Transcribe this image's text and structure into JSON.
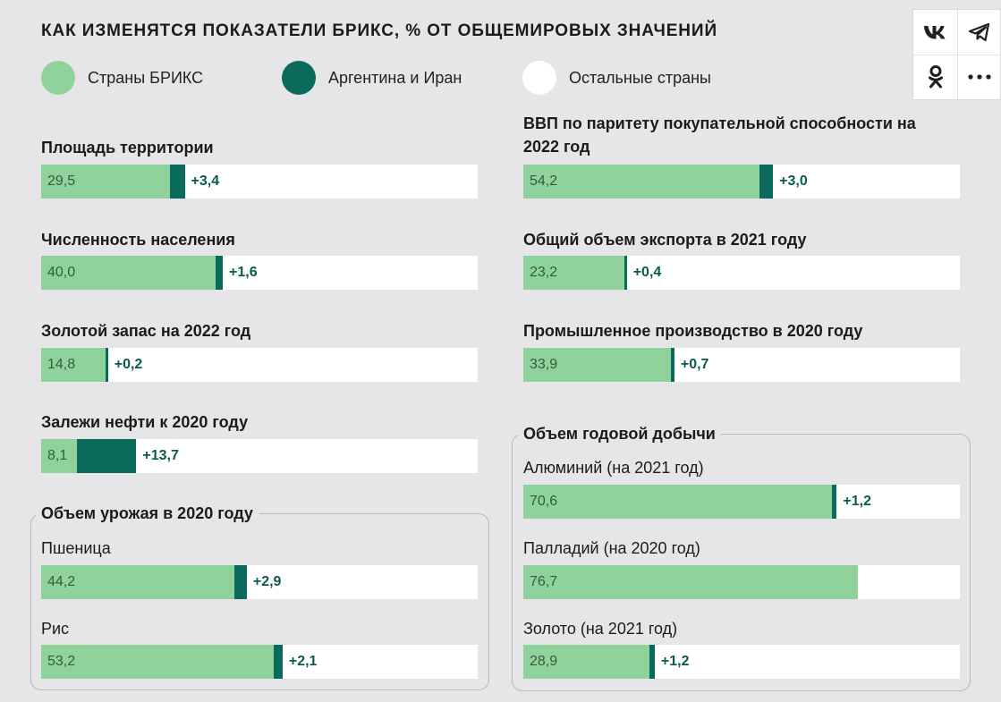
{
  "title": "КАК ИЗМЕНЯТСЯ ПОКАЗАТЕЛИ БРИКС, % ОТ ОБЩЕМИРОВЫХ ЗНАЧЕНИЙ",
  "legend": [
    {
      "label": "Страны БРИКС",
      "color": "#8fd29c"
    },
    {
      "label": "Аргентина и Иран",
      "color": "#0a6b5d"
    },
    {
      "label": "Остальные страны",
      "color": "#ffffff"
    }
  ],
  "share": {
    "icons": [
      "vk-icon",
      "telegram-icon",
      "odnoklassniki-icon",
      "more-icon"
    ]
  },
  "chart_data": {
    "type": "bar",
    "unit": "%",
    "xlim": [
      0,
      100
    ],
    "series": [
      {
        "name": "Страны БРИКС",
        "color": "#8fd29c"
      },
      {
        "name": "Аргентина и Иран",
        "color": "#0a6b5d"
      },
      {
        "name": "Остальные страны",
        "color": "#ffffff"
      }
    ],
    "groups": [
      {
        "title": "Объем урожая в 2020 году",
        "items": [
          "Пшеница",
          "Рис"
        ]
      },
      {
        "title": "Объем годовой добычи",
        "items": [
          "Алюминий (на 2021 год)",
          "Палладий (на 2020 год)",
          "Золото (на 2021 год)"
        ]
      }
    ],
    "metrics": [
      {
        "label": "Площадь территории",
        "brics": 29.5,
        "brics_label": "29,5",
        "added": 3.4,
        "added_label": "+3,4"
      },
      {
        "label": "Численность населения",
        "brics": 40.0,
        "brics_label": "40,0",
        "added": 1.6,
        "added_label": "+1,6"
      },
      {
        "label": "Золотой запас на 2022 год",
        "brics": 14.8,
        "brics_label": "14,8",
        "added": 0.2,
        "added_label": "+0,2"
      },
      {
        "label": "Залежи нефти к 2020 году",
        "brics": 8.1,
        "brics_label": "8,1",
        "added": 13.7,
        "added_label": "+13,7"
      },
      {
        "label": "Пшеница",
        "group": 0,
        "brics": 44.2,
        "brics_label": "44,2",
        "added": 2.9,
        "added_label": "+2,9"
      },
      {
        "label": "Рис",
        "group": 0,
        "brics": 53.2,
        "brics_label": "53,2",
        "added": 2.1,
        "added_label": "+2,1"
      },
      {
        "label": "ВВП по паритету покупательной способности на 2022 год",
        "brics": 54.2,
        "brics_label": "54,2",
        "added": 3.0,
        "added_label": "+3,0"
      },
      {
        "label": "Общий объем экспорта в 2021 году",
        "brics": 23.2,
        "brics_label": "23,2",
        "added": 0.4,
        "added_label": "+0,4"
      },
      {
        "label": "Промышленное производство в 2020 году",
        "brics": 33.9,
        "brics_label": "33,9",
        "added": 0.7,
        "added_label": "+0,7"
      },
      {
        "label": "Алюминий (на 2021 год)",
        "group": 1,
        "brics": 70.6,
        "brics_label": "70,6",
        "added": 1.2,
        "added_label": "+1,2"
      },
      {
        "label": "Палладий (на 2020 год)",
        "group": 1,
        "brics": 76.7,
        "brics_label": "76,7",
        "added": 0,
        "added_label": ""
      },
      {
        "label": "Золото (на 2021 год)",
        "group": 1,
        "brics": 28.9,
        "brics_label": "28,9",
        "added": 1.2,
        "added_label": "+1,2"
      }
    ]
  }
}
